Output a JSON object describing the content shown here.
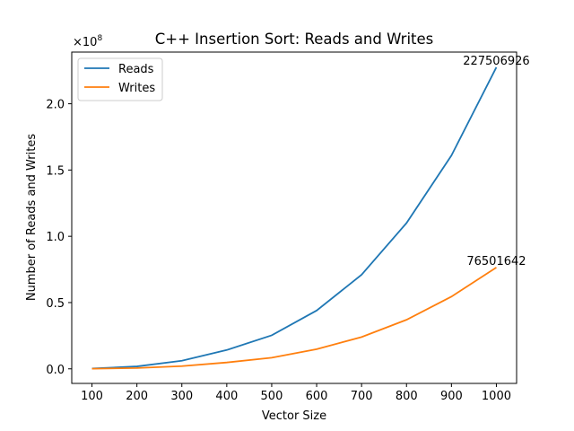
{
  "chart_data": {
    "type": "line",
    "title": "C++ Insertion Sort: Reads and Writes",
    "xlabel": "Vector Size",
    "ylabel": "Number of Reads and Writes",
    "y_offset_label": "×10",
    "y_offset_exponent": "8",
    "y_scale": 100000000,
    "x": [
      100,
      200,
      300,
      400,
      500,
      600,
      700,
      800,
      900,
      1000
    ],
    "xticks": [
      "100",
      "200",
      "300",
      "400",
      "500",
      "600",
      "700",
      "800",
      "900",
      "1000"
    ],
    "yticks": [
      0,
      0.5,
      1.0,
      1.5,
      2.0
    ],
    "ytick_labels": [
      "0.0",
      "0.5",
      "1.0",
      "1.5",
      "2.0"
    ],
    "xlim": [
      55,
      1045
    ],
    "ylim": [
      -11000000,
      239000000
    ],
    "grid": false,
    "legend_position": "top-left",
    "series": [
      {
        "name": "Reads",
        "color": "#1f77b4",
        "values": [
          227000,
          1830000,
          6130000,
          14200000,
          25300000,
          44000000,
          71000000,
          110000000,
          161000000,
          227506926
        ]
      },
      {
        "name": "Writes",
        "color": "#ff7f0e",
        "values": [
          77000,
          612000,
          2060000,
          4800000,
          8400000,
          14800000,
          24000000,
          37000000,
          54500000,
          76501642
        ]
      }
    ],
    "annotations": [
      {
        "text": "227506926",
        "x": 1000,
        "y": 227506926
      },
      {
        "text": "76501642",
        "x": 1000,
        "y": 76501642
      }
    ]
  }
}
